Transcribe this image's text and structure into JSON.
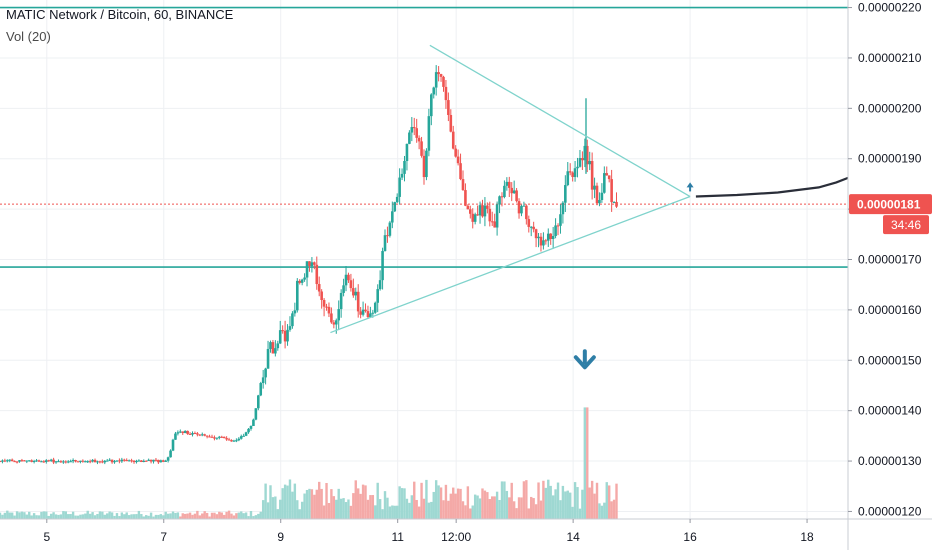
{
  "header": {
    "symbol_line": "MATIC Network / Bitcoin, 60, BINANCE",
    "indicator_line": "Vol (20)"
  },
  "chart_data": {
    "type": "candlestick",
    "title": "MATIC Network / Bitcoin, 60, BINANCE",
    "indicator": "Vol (20)",
    "y_axis": {
      "ticks": [
        "0.00000120",
        "0.00000130",
        "0.00000140",
        "0.00000150",
        "0.00000160",
        "0.00000170",
        "0.00000180",
        "0.00000190",
        "0.00000200",
        "0.00000210",
        "0.00000220"
      ],
      "range": [
        1.185e-06,
        2.215e-06
      ],
      "side": "right"
    },
    "x_axis": {
      "ticks": [
        "5",
        "7",
        "9",
        "11",
        "12:00",
        "14",
        "16",
        "18"
      ],
      "tick_days": [
        5,
        7,
        9,
        11,
        12,
        14,
        16,
        18
      ],
      "range_days": [
        4.2,
        18.7
      ]
    },
    "current_price": {
      "label": "0.00000181",
      "value": 1.81e-06,
      "countdown": "34:46",
      "color": "#ef5350"
    },
    "colors": {
      "up": "#26a69a",
      "down": "#ef5350",
      "trendline": "#7fd3cc",
      "hline": "#26a69a",
      "projection": "#2a2e39",
      "arrow": "#2e7ea6"
    },
    "horizontal_levels": [
      2.2e-06,
      1.685e-06
    ],
    "triangle": {
      "upper": [
        [
          11.55,
          2.125e-06
        ],
        [
          16.0,
          1.825e-06
        ]
      ],
      "lower": [
        [
          9.85,
          1.555e-06
        ],
        [
          16.0,
          1.825e-06
        ]
      ]
    },
    "projection_path": [
      [
        16.1,
        1.825e-06
      ],
      [
        16.8,
        1.828e-06
      ],
      [
        17.5,
        1.833e-06
      ],
      [
        18.2,
        1.843e-06
      ],
      [
        18.5,
        1.853e-06
      ],
      [
        18.7,
        1.862e-06
      ]
    ],
    "annotations": [
      {
        "type": "arrow-up",
        "x": 16.0,
        "y": 1.845e-06
      },
      {
        "type": "arrow-down",
        "x": 14.2,
        "y": 1.5e-06
      }
    ],
    "price_segments": [
      [
        4.2,
        1.3e-06
      ],
      [
        6.2,
        1.3e-06
      ],
      [
        7.1,
        1.3e-06
      ],
      [
        7.25,
        1.36e-06
      ],
      [
        8.3,
        1.34e-06
      ],
      [
        8.55,
        1.37e-06
      ],
      [
        8.8,
        1.51e-06
      ],
      [
        9.05,
        1.55e-06
      ],
      [
        9.2,
        1.56e-06
      ],
      [
        9.35,
        1.66e-06
      ],
      [
        9.55,
        1.7e-06
      ],
      [
        9.75,
        1.62e-06
      ],
      [
        9.95,
        1.58e-06
      ],
      [
        10.2,
        1.67e-06
      ],
      [
        10.4,
        1.6e-06
      ],
      [
        10.65,
        1.59e-06
      ],
      [
        10.8,
        1.72e-06
      ],
      [
        11.05,
        1.85e-06
      ],
      [
        11.2,
        1.92e-06
      ],
      [
        11.3,
        1.99e-06
      ],
      [
        11.5,
        1.86e-06
      ],
      [
        11.6,
        2.03e-06
      ],
      [
        11.75,
        2.08e-06
      ],
      [
        11.9,
        2.01e-06
      ],
      [
        12.05,
        1.89e-06
      ],
      [
        12.25,
        1.78e-06
      ],
      [
        12.45,
        1.8e-06
      ],
      [
        12.7,
        1.78e-06
      ],
      [
        12.9,
        1.86e-06
      ],
      [
        13.05,
        1.82e-06
      ],
      [
        13.3,
        1.77e-06
      ],
      [
        13.5,
        1.73e-06
      ],
      [
        13.7,
        1.74e-06
      ],
      [
        13.95,
        1.86e-06
      ],
      [
        14.1,
        1.88e-06
      ],
      [
        14.25,
        1.92e-06
      ],
      [
        14.45,
        1.81e-06
      ],
      [
        14.6,
        1.87e-06
      ],
      [
        14.75,
        1.81e-06
      ]
    ],
    "volume_peaks": [
      [
        9.8,
        0.3
      ],
      [
        11.7,
        0.28
      ],
      [
        14.22,
        0.93
      ]
    ]
  }
}
